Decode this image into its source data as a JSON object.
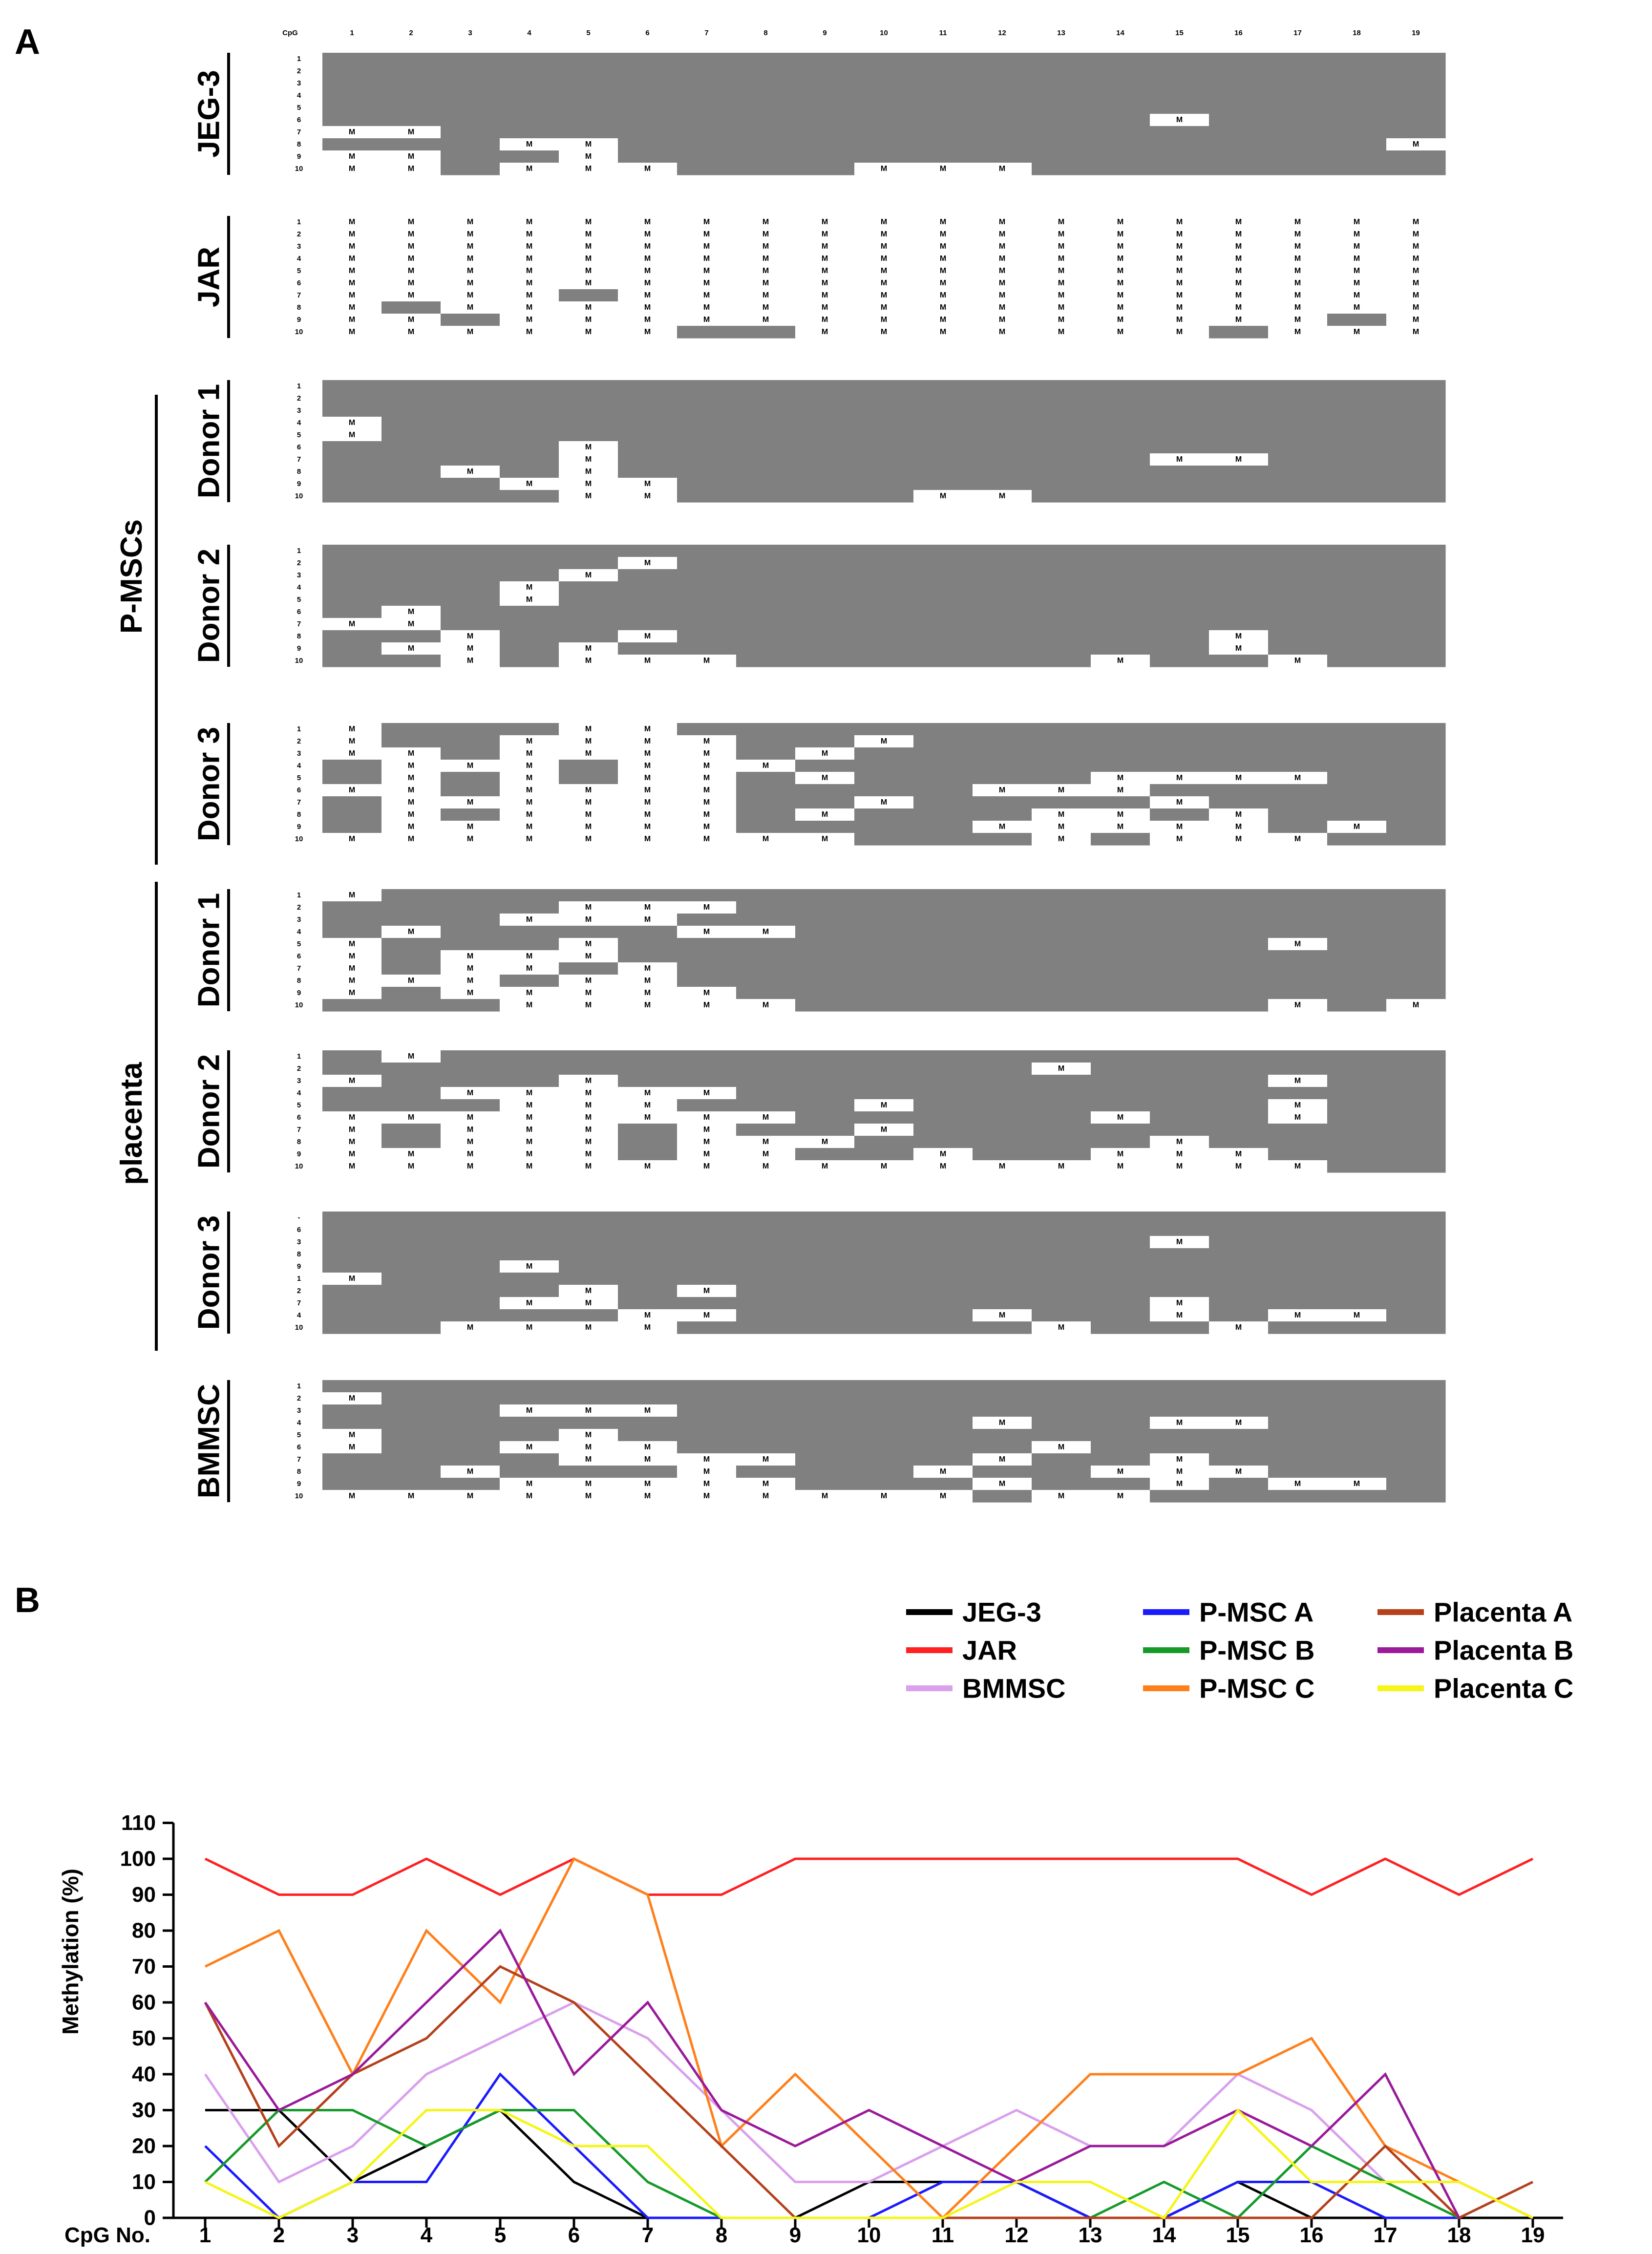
{
  "panel_a": {
    "letter": "A",
    "cpg_header": "CpG",
    "cpg_numbers": [
      "1",
      "2",
      "3",
      "4",
      "5",
      "6",
      "7",
      "8",
      "9",
      "10",
      "11",
      "12",
      "13",
      "14",
      "15",
      "16",
      "17",
      "18",
      "19"
    ],
    "methylated_mark": "M",
    "group_labels": {
      "pmsc": "P-MSCs",
      "placenta": "placenta"
    },
    "samples": [
      {
        "label": "JEG-3",
        "rows": [
          "1",
          "2",
          "3",
          "4",
          "5",
          "6",
          "7",
          "8",
          "9",
          "10"
        ],
        "methylated": [
          [],
          [],
          [],
          [],
          [],
          [
            15
          ],
          [
            1,
            2
          ],
          [
            4,
            5,
            19
          ],
          [
            1,
            2,
            5
          ],
          [
            1,
            2,
            4,
            5,
            6,
            10,
            11,
            12
          ]
        ]
      },
      {
        "label": "JAR",
        "rows": [
          "1",
          "2",
          "3",
          "4",
          "5",
          "6",
          "7",
          "8",
          "9",
          "10"
        ],
        "methylated": [
          [
            1,
            2,
            3,
            4,
            5,
            6,
            7,
            8,
            9,
            10,
            11,
            12,
            13,
            14,
            15,
            16,
            17,
            18,
            19
          ],
          [
            1,
            2,
            3,
            4,
            5,
            6,
            7,
            8,
            9,
            10,
            11,
            12,
            13,
            14,
            15,
            16,
            17,
            18,
            19
          ],
          [
            1,
            2,
            3,
            4,
            5,
            6,
            7,
            8,
            9,
            10,
            11,
            12,
            13,
            14,
            15,
            16,
            17,
            18,
            19
          ],
          [
            1,
            2,
            3,
            4,
            5,
            6,
            7,
            8,
            9,
            10,
            11,
            12,
            13,
            14,
            15,
            16,
            17,
            18,
            19
          ],
          [
            1,
            2,
            3,
            4,
            5,
            6,
            7,
            8,
            9,
            10,
            11,
            12,
            13,
            14,
            15,
            16,
            17,
            18,
            19
          ],
          [
            1,
            2,
            3,
            4,
            5,
            6,
            7,
            8,
            9,
            10,
            11,
            12,
            13,
            14,
            15,
            16,
            17,
            18,
            19
          ],
          [
            1,
            2,
            3,
            4,
            6,
            7,
            8,
            9,
            10,
            11,
            12,
            13,
            14,
            15,
            16,
            17,
            18,
            19
          ],
          [
            1,
            3,
            4,
            5,
            6,
            7,
            8,
            9,
            10,
            11,
            12,
            13,
            14,
            15,
            16,
            17,
            18,
            19
          ],
          [
            1,
            2,
            4,
            5,
            6,
            7,
            8,
            9,
            10,
            11,
            12,
            13,
            14,
            15,
            16,
            17,
            19
          ],
          [
            1,
            2,
            3,
            4,
            5,
            6,
            9,
            10,
            11,
            12,
            13,
            14,
            15,
            17,
            18,
            19
          ]
        ]
      },
      {
        "label": "Donor 1",
        "rows": [
          "1",
          "2",
          "3",
          "4",
          "5",
          "6",
          "7",
          "8",
          "9",
          "10"
        ],
        "methylated": [
          [],
          [],
          [],
          [
            1
          ],
          [
            1
          ],
          [
            5
          ],
          [
            5,
            15,
            16
          ],
          [
            3,
            5
          ],
          [
            4,
            5,
            6
          ],
          [
            5,
            6,
            11,
            12
          ]
        ]
      },
      {
        "label": "Donor 2",
        "rows": [
          "1",
          "2",
          "3",
          "4",
          "5",
          "6",
          "7",
          "8",
          "9",
          "10"
        ],
        "methylated": [
          [],
          [
            6
          ],
          [
            5
          ],
          [
            4
          ],
          [
            4
          ],
          [
            2
          ],
          [
            1,
            2
          ],
          [
            3,
            6,
            16
          ],
          [
            2,
            3,
            5,
            16
          ],
          [
            3,
            5,
            6,
            7,
            14,
            17
          ]
        ]
      },
      {
        "label": "Donor 3",
        "rows": [
          "1",
          "2",
          "3",
          "4",
          "5",
          "6",
          "7",
          "8",
          "9",
          "10"
        ],
        "methylated": [
          [
            1,
            5,
            6
          ],
          [
            1,
            4,
            5,
            6,
            7,
            10
          ],
          [
            1,
            2,
            4,
            5,
            6,
            7,
            9
          ],
          [
            2,
            3,
            4,
            6,
            7,
            8
          ],
          [
            2,
            4,
            6,
            7,
            9,
            14,
            15,
            16,
            17
          ],
          [
            1,
            2,
            4,
            5,
            6,
            7,
            12,
            13,
            14
          ],
          [
            2,
            3,
            4,
            5,
            6,
            7,
            10,
            15
          ],
          [
            2,
            4,
            5,
            6,
            7,
            9,
            13,
            14,
            16
          ],
          [
            2,
            3,
            4,
            5,
            6,
            7,
            12,
            13,
            14,
            15,
            16,
            18
          ],
          [
            1,
            2,
            3,
            4,
            5,
            6,
            7,
            8,
            9,
            13,
            15,
            16,
            17
          ]
        ]
      },
      {
        "label": "Donor 1",
        "rows": [
          "1",
          "2",
          "3",
          "4",
          "5",
          "6",
          "7",
          "8",
          "9",
          "10"
        ],
        "methylated": [
          [
            1
          ],
          [
            5,
            6,
            7
          ],
          [
            4,
            5,
            6
          ],
          [
            2,
            7,
            8
          ],
          [
            1,
            5,
            17
          ],
          [
            1,
            3,
            4,
            5
          ],
          [
            1,
            3,
            4,
            6
          ],
          [
            1,
            2,
            3,
            5,
            6
          ],
          [
            1,
            3,
            4,
            5,
            6,
            7
          ],
          [
            4,
            5,
            6,
            7,
            8,
            17,
            19
          ]
        ]
      },
      {
        "label": "Donor 2",
        "rows": [
          "1",
          "2",
          "3",
          "4",
          "5",
          "6",
          "7",
          "8",
          "9",
          "10"
        ],
        "methylated": [
          [
            2
          ],
          [
            13
          ],
          [
            1,
            5,
            17
          ],
          [
            3,
            4,
            5,
            6,
            7
          ],
          [
            4,
            5,
            6,
            10,
            17
          ],
          [
            1,
            2,
            3,
            4,
            5,
            6,
            7,
            8,
            14,
            17
          ],
          [
            1,
            3,
            4,
            5,
            7,
            10
          ],
          [
            1,
            3,
            4,
            5,
            7,
            8,
            9,
            15
          ],
          [
            1,
            2,
            3,
            4,
            5,
            7,
            8,
            11,
            14,
            15,
            16
          ],
          [
            1,
            2,
            3,
            4,
            5,
            6,
            7,
            8,
            9,
            10,
            11,
            12,
            13,
            14,
            15,
            16,
            17
          ]
        ]
      },
      {
        "label": "Donor 3",
        "rows": [
          "-",
          "6",
          "3",
          "8",
          "9",
          "1",
          "2",
          "7",
          "4",
          "10"
        ],
        "methylated": [
          [],
          [],
          [
            15
          ],
          [],
          [
            4
          ],
          [
            1
          ],
          [
            5,
            7
          ],
          [
            4,
            5,
            15
          ],
          [
            6,
            7,
            12,
            15,
            17,
            18
          ],
          [
            3,
            4,
            5,
            6,
            13,
            16
          ]
        ]
      },
      {
        "label": "BMMSC",
        "rows": [
          "1",
          "2",
          "3",
          "4",
          "5",
          "6",
          "7",
          "8",
          "9",
          "10"
        ],
        "methylated": [
          [],
          [
            1
          ],
          [
            4,
            5,
            6
          ],
          [
            12,
            15,
            16
          ],
          [
            1,
            5
          ],
          [
            1,
            4,
            5,
            6,
            13
          ],
          [
            5,
            6,
            7,
            8,
            12,
            15
          ],
          [
            3,
            7,
            11,
            14,
            15,
            16
          ],
          [
            4,
            5,
            6,
            7,
            8,
            12,
            15,
            17,
            18
          ],
          [
            1,
            2,
            3,
            4,
            5,
            6,
            7,
            8,
            9,
            10,
            11,
            13,
            14
          ]
        ]
      }
    ]
  },
  "chart_data": {
    "type": "line",
    "panel_letter": "B",
    "title": "",
    "xlabel": "CpG No.",
    "ylabel": "Methylation (%)",
    "categories": [
      "1",
      "2",
      "3",
      "4",
      "5",
      "6",
      "7",
      "8",
      "9",
      "10",
      "11",
      "12",
      "13",
      "14",
      "15",
      "16",
      "17",
      "18",
      "19"
    ],
    "yticks": [
      "0",
      "10",
      "20",
      "30",
      "40",
      "50",
      "60",
      "70",
      "80",
      "90",
      "100",
      "110"
    ],
    "ylim": [
      0,
      110
    ],
    "legend_position": "top-right",
    "series": [
      {
        "name": "JEG-3",
        "color": "#000000",
        "values": [
          30,
          30,
          10,
          20,
          30,
          10,
          0,
          0,
          0,
          10,
          10,
          10,
          0,
          0,
          10,
          0,
          null,
          null,
          null
        ]
      },
      {
        "name": "JAR",
        "color": "#ff2020",
        "values": [
          100,
          90,
          90,
          100,
          90,
          100,
          90,
          90,
          100,
          100,
          100,
          100,
          100,
          100,
          100,
          90,
          100,
          90,
          100
        ]
      },
      {
        "name": "BMMSC",
        "color": "#d9a0ec",
        "values": [
          40,
          10,
          20,
          40,
          50,
          60,
          50,
          30,
          10,
          10,
          20,
          30,
          20,
          20,
          40,
          30,
          10,
          10,
          0
        ]
      },
      {
        "name": "P-MSC A",
        "color": "#1a1aff",
        "values": [
          20,
          0,
          10,
          10,
          40,
          20,
          0,
          0,
          0,
          0,
          10,
          10,
          0,
          0,
          10,
          10,
          0,
          0,
          null
        ]
      },
      {
        "name": "P-MSC B",
        "color": "#159a2a",
        "values": [
          10,
          30,
          30,
          20,
          30,
          30,
          10,
          0,
          0,
          0,
          0,
          0,
          0,
          10,
          0,
          20,
          10,
          0,
          null
        ]
      },
      {
        "name": "P-MSC C",
        "color": "#ff7f1a",
        "values": [
          70,
          80,
          40,
          80,
          60,
          100,
          90,
          20,
          40,
          20,
          0,
          20,
          40,
          40,
          40,
          50,
          20,
          10,
          0
        ]
      },
      {
        "name": "Placenta A",
        "color": "#b5401a",
        "values": [
          60,
          20,
          40,
          50,
          70,
          60,
          40,
          20,
          0,
          0,
          0,
          0,
          0,
          0,
          0,
          0,
          20,
          0,
          10
        ]
      },
      {
        "name": "Placenta B",
        "color": "#9a1a9a",
        "values": [
          60,
          30,
          40,
          60,
          80,
          40,
          60,
          30,
          20,
          30,
          20,
          10,
          20,
          20,
          30,
          20,
          40,
          0,
          null
        ]
      },
      {
        "name": "Placenta C",
        "color": "#f5f51a",
        "values": [
          10,
          0,
          10,
          30,
          30,
          20,
          20,
          0,
          0,
          0,
          0,
          10,
          10,
          0,
          30,
          10,
          10,
          10,
          0
        ]
      }
    ]
  }
}
